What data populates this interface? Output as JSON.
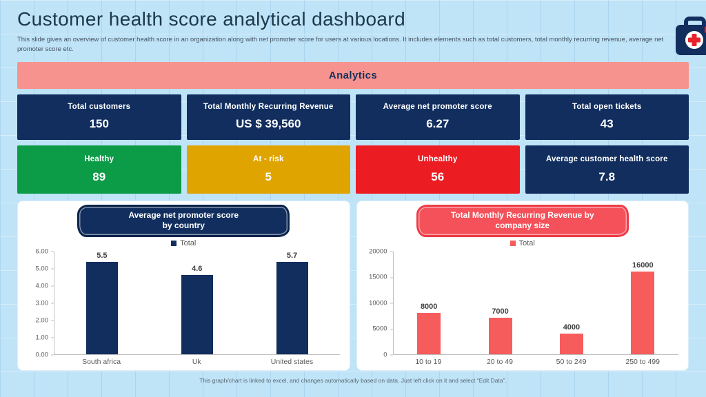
{
  "slide": {
    "title": "Customer health score analytical dashboard",
    "subtitle": "This slide gives an overview of customer health score in an organization along with net promoter score for users at various locations. It includes elements such as total customers, total monthly recurring revenue, average net promoter score etc.",
    "footer": "This graph/chart is linked to excel,  and changes automatically based on data. Just left click on it and select “Edit Data”."
  },
  "banner": {
    "label": "Analytics"
  },
  "kpi_cards": [
    {
      "label": "Total customers",
      "value": "150"
    },
    {
      "label": "Total Monthly Recurring Revenue",
      "value": "US $ 39,560"
    },
    {
      "label": "Average net promoter score",
      "value": "6.27"
    },
    {
      "label": "Total open tickets",
      "value": "43"
    }
  ],
  "status_cards": [
    {
      "label": "Healthy",
      "value": "89",
      "color": "#0c9b47"
    },
    {
      "label": "At - risk",
      "value": "5",
      "color": "#e0a400"
    },
    {
      "label": "Unhealthy",
      "value": "56",
      "color": "#ec1c23"
    },
    {
      "label": "Average customer health score",
      "value": "7.8",
      "color": "#112e5e"
    }
  ],
  "colors": {
    "background": "#bfe3f7",
    "banner": "#f7938f",
    "navy": "#112e5e",
    "coral": "#f75c5c"
  },
  "chart_data": [
    {
      "type": "bar",
      "title": "Average net promoter score by country",
      "title_lines": [
        "Average net promoter score",
        "by country"
      ],
      "legend": "Total",
      "categories": [
        "South africa",
        "Uk",
        "United states"
      ],
      "values": [
        5.5,
        4.6,
        5.7
      ],
      "value_labels": [
        "5.5",
        "4.6",
        "5.7"
      ],
      "ylim": [
        0,
        6
      ],
      "yticks": [
        "6.00",
        "5.00",
        "4.00",
        "3.00",
        "2.00",
        "1.00",
        "0.00"
      ],
      "grid": false,
      "legend_position": "top-center",
      "bar_color": "#112e5e",
      "badge_color": "#112e5e",
      "badge_border": "#0b2349"
    },
    {
      "type": "bar",
      "title": "Total Monthly Recurring Revenue by company size",
      "title_lines": [
        "Total Monthly  Recurring Revenue by",
        "company size"
      ],
      "legend": "Total",
      "categories": [
        "10 to 19",
        "20 to 49",
        "50 to 249",
        "250 to 499"
      ],
      "values": [
        8000,
        7000,
        4000,
        16000
      ],
      "value_labels": [
        "8000",
        "7000",
        "4000",
        "16000"
      ],
      "ylim": [
        0,
        20000
      ],
      "yticks": [
        "20000",
        "15000",
        "10000",
        "5000",
        "0"
      ],
      "grid": false,
      "legend_position": "top-center",
      "bar_color": "#f75c5c",
      "badge_color": "#f4515a",
      "badge_border": "#ee3b46"
    }
  ]
}
